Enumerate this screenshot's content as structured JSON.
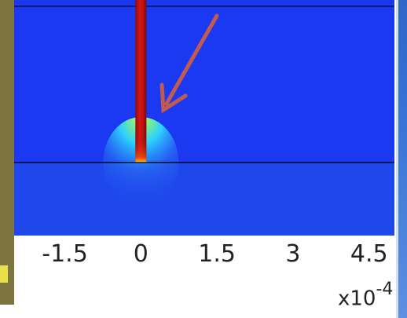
{
  "chart_data": {
    "type": "heatmap",
    "title": "",
    "xlabel": "",
    "ylabel": "",
    "x_ticks": [
      "-1.5",
      "0",
      "1.5",
      "3",
      "4.5"
    ],
    "x_tick_values": [
      -1.5,
      0,
      1.5,
      3,
      4.5
    ],
    "xlim": [
      -2.5,
      5.0
    ],
    "x_scale_label": {
      "base": "x10",
      "exponent": "-4"
    },
    "colormap": "rainbow",
    "colors": {
      "background_blue": "#1b39f0",
      "lower_blue": "#1f48ec",
      "interface_line": "#000000",
      "hot_strip": "#c41012",
      "hot_strip_bright": "#ff2a0e",
      "arrow": "#c25a4f"
    },
    "features": {
      "vertical_strip_x": 0,
      "interface_line": true,
      "hotspot_at_interface": true,
      "annotation_arrow": true
    }
  }
}
